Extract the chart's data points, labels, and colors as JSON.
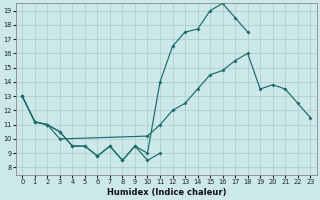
{
  "xlabel": "Humidex (Indice chaleur)",
  "bg_color": "#cce8e8",
  "grid_color": "#aacccc",
  "line_color": "#1a6b6b",
  "xlim": [
    -0.5,
    23.5
  ],
  "ylim": [
    7.5,
    19.5
  ],
  "xticks": [
    0,
    1,
    2,
    3,
    4,
    5,
    6,
    7,
    8,
    9,
    10,
    11,
    12,
    13,
    14,
    15,
    16,
    17,
    18,
    19,
    20,
    21,
    22,
    23
  ],
  "yticks": [
    8,
    9,
    10,
    11,
    12,
    13,
    14,
    15,
    16,
    17,
    18,
    19
  ],
  "s1_x": [
    0,
    1,
    2,
    3,
    4,
    5,
    6,
    7,
    8,
    9,
    10,
    11
  ],
  "s1_y": [
    13,
    11.2,
    11,
    10.5,
    9.5,
    9.5,
    8.8,
    9.5,
    8.5,
    9.5,
    8.5,
    9.0
  ],
  "s2_x": [
    0,
    1,
    2,
    3,
    4,
    5,
    6,
    7,
    8,
    9,
    10,
    11,
    12,
    13,
    14,
    15,
    16,
    17,
    18
  ],
  "s2_y": [
    13,
    11.2,
    11,
    10.5,
    9.5,
    9.5,
    8.8,
    9.5,
    8.5,
    9.5,
    9.0,
    14.0,
    16.5,
    17.5,
    17.7,
    19.0,
    19.5,
    18.5,
    17.5
  ],
  "s3_x": [
    0,
    1,
    2,
    3,
    10,
    11,
    12,
    13,
    14,
    15,
    16,
    17,
    18,
    19,
    20,
    21,
    22,
    23
  ],
  "s3_y": [
    13,
    11.2,
    11,
    10.0,
    10.2,
    11.0,
    12.0,
    12.5,
    13.5,
    14.5,
    14.8,
    15.5,
    16.0,
    13.5,
    13.8,
    13.5,
    12.5,
    11.5
  ]
}
